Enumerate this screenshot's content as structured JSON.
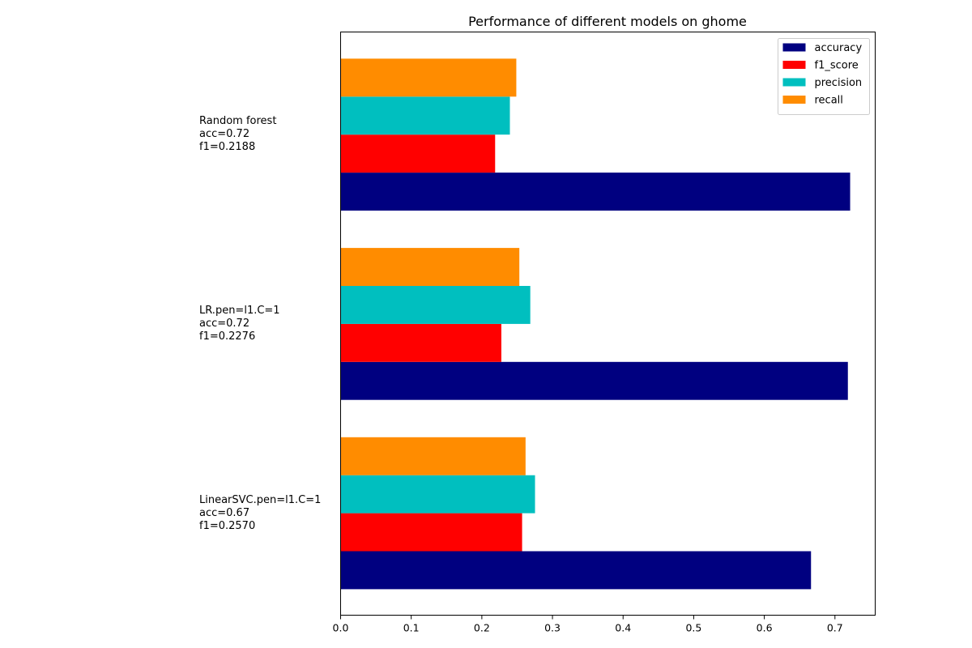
{
  "chart_data": {
    "type": "bar",
    "orientation": "horizontal",
    "title": "Performance of different models on ghome",
    "xlabel": "",
    "ylabel": "",
    "xlim": [
      0,
      0.757
    ],
    "xticks": [
      "0.0",
      "0.1",
      "0.2",
      "0.3",
      "0.4",
      "0.5",
      "0.6",
      "0.7"
    ],
    "grid": false,
    "legend_position": "top-right",
    "categories": [
      {
        "lines": [
          "Random forest",
          "acc=0.72",
          "f1=0.2188"
        ]
      },
      {
        "lines": [
          "LR.pen=l1.C=1",
          "acc=0.72",
          "f1=0.2276"
        ]
      },
      {
        "lines": [
          "LinearSVC.pen=l1.C=1",
          "acc=0.67",
          "f1=0.2570"
        ]
      }
    ],
    "series": [
      {
        "name": "accuracy",
        "color": "#000080",
        "values": [
          0.7215,
          0.7183,
          0.6661
        ]
      },
      {
        "name": "f1_score",
        "color": "#ff0000",
        "values": [
          0.2188,
          0.2276,
          0.257
        ]
      },
      {
        "name": "precision",
        "color": "#00bfbf",
        "values": [
          0.2397,
          0.2686,
          0.2753
        ]
      },
      {
        "name": "recall",
        "color": "#ff8c00",
        "values": [
          0.2488,
          0.2531,
          0.2619
        ]
      }
    ]
  }
}
